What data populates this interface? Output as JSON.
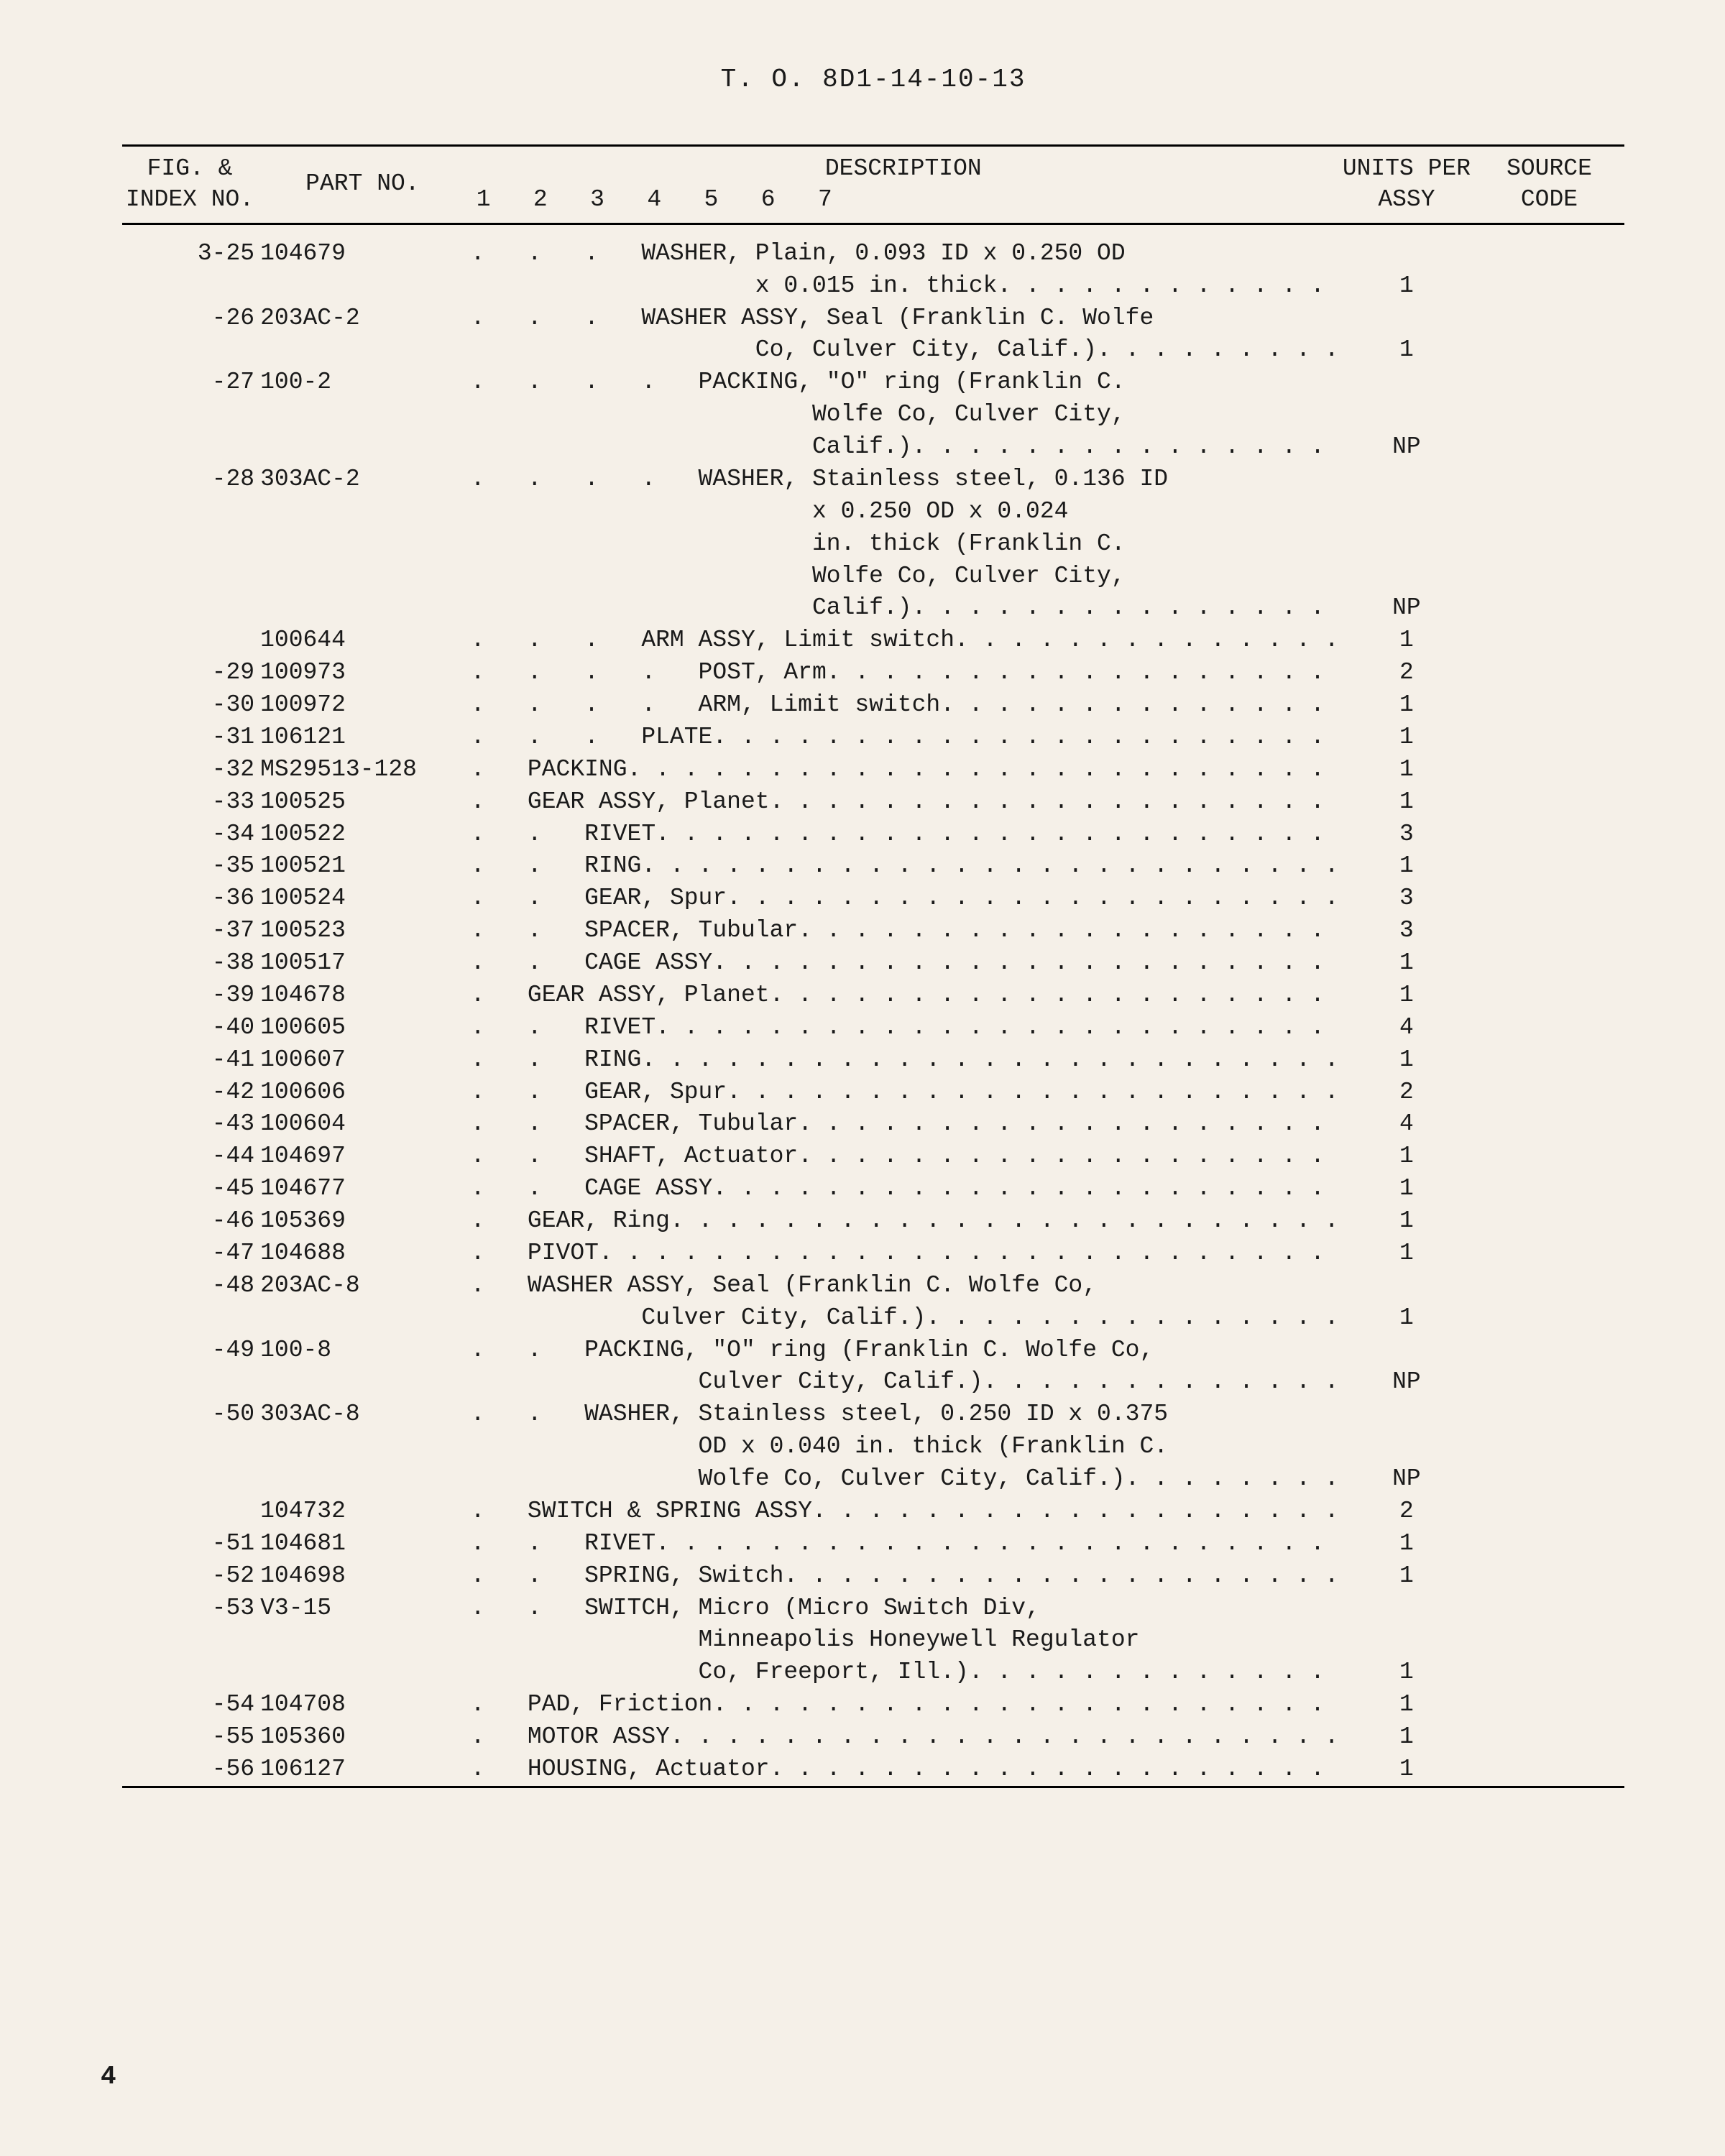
{
  "doc_title": "T. O. 8D1-14-10-13",
  "page_number": "4",
  "headers": {
    "index": "FIG. &\nINDEX\nNO.",
    "part": "PART\nNO.",
    "desc": "DESCRIPTION",
    "desc_cols": "1   2   3   4   5   6   7",
    "units": "UNITS\nPER\nASSY",
    "source": "SOURCE\nCODE"
  },
  "rows": [
    {
      "index": "3-25",
      "part": "104679",
      "indent": 3,
      "lines": [
        {
          "text": "WASHER, Plain, 0.093 ID x 0.250 OD",
          "dots": false
        },
        {
          "indent": 5,
          "text": "x 0.015 in. thick",
          "dots": true
        }
      ],
      "units": "1"
    },
    {
      "index": "-26",
      "part": "203AC-2",
      "indent": 3,
      "lines": [
        {
          "text": "WASHER ASSY, Seal (Franklin C. Wolfe",
          "dots": false
        },
        {
          "indent": 5,
          "text": "Co, Culver City, Calif.)",
          "dots": true
        }
      ],
      "units": "1"
    },
    {
      "index": "-27",
      "part": "100-2",
      "indent": 4,
      "lines": [
        {
          "text": "PACKING, \"O\" ring (Franklin C.",
          "dots": false
        },
        {
          "indent": 6,
          "text": "Wolfe Co, Culver City,",
          "dots": false
        },
        {
          "indent": 6,
          "text": "Calif.)",
          "dots": true
        }
      ],
      "units": "NP"
    },
    {
      "index": "-28",
      "part": "303AC-2",
      "indent": 4,
      "lines": [
        {
          "text": "WASHER, Stainless steel, 0.136 ID",
          "dots": false
        },
        {
          "indent": 6,
          "text": "x 0.250 OD x 0.024",
          "dots": false
        },
        {
          "indent": 6,
          "text": "in. thick (Franklin C.",
          "dots": false
        },
        {
          "indent": 6,
          "text": "Wolfe Co, Culver City,",
          "dots": false
        },
        {
          "indent": 6,
          "text": "Calif.)",
          "dots": true
        }
      ],
      "units": "NP"
    },
    {
      "index": "",
      "part": "100644",
      "indent": 3,
      "lines": [
        {
          "text": "ARM ASSY, Limit switch",
          "dots": true
        }
      ],
      "units": "1"
    },
    {
      "index": "-29",
      "part": "100973",
      "indent": 4,
      "lines": [
        {
          "text": "POST, Arm",
          "dots": true
        }
      ],
      "units": "2"
    },
    {
      "index": "-30",
      "part": "100972",
      "indent": 4,
      "lines": [
        {
          "text": "ARM, Limit switch",
          "dots": true
        }
      ],
      "units": "1"
    },
    {
      "index": "-31",
      "part": "106121",
      "indent": 3,
      "lines": [
        {
          "text": "PLATE",
          "dots": true
        }
      ],
      "units": "1"
    },
    {
      "index": "-32",
      "part": "MS29513-128",
      "indent": 1,
      "lines": [
        {
          "text": "PACKING",
          "dots": true
        }
      ],
      "units": "1"
    },
    {
      "index": "-33",
      "part": "100525",
      "indent": 1,
      "lines": [
        {
          "text": "GEAR ASSY, Planet",
          "dots": true
        }
      ],
      "units": "1"
    },
    {
      "index": "-34",
      "part": "100522",
      "indent": 2,
      "lines": [
        {
          "text": "RIVET",
          "dots": true
        }
      ],
      "units": "3"
    },
    {
      "index": "-35",
      "part": "100521",
      "indent": 2,
      "lines": [
        {
          "text": "RING",
          "dots": true
        }
      ],
      "units": "1"
    },
    {
      "index": "-36",
      "part": "100524",
      "indent": 2,
      "lines": [
        {
          "text": "GEAR, Spur",
          "dots": true
        }
      ],
      "units": "3"
    },
    {
      "index": "-37",
      "part": "100523",
      "indent": 2,
      "lines": [
        {
          "text": "SPACER, Tubular",
          "dots": true
        }
      ],
      "units": "3"
    },
    {
      "index": "-38",
      "part": "100517",
      "indent": 2,
      "lines": [
        {
          "text": "CAGE ASSY",
          "dots": true
        }
      ],
      "units": "1"
    },
    {
      "index": "-39",
      "part": "104678",
      "indent": 1,
      "lines": [
        {
          "text": "GEAR ASSY, Planet",
          "dots": true
        }
      ],
      "units": "1"
    },
    {
      "index": "-40",
      "part": "100605",
      "indent": 2,
      "lines": [
        {
          "text": "RIVET",
          "dots": true
        }
      ],
      "units": "4"
    },
    {
      "index": "-41",
      "part": "100607",
      "indent": 2,
      "lines": [
        {
          "text": "RING",
          "dots": true
        }
      ],
      "units": "1"
    },
    {
      "index": "-42",
      "part": "100606",
      "indent": 2,
      "lines": [
        {
          "text": "GEAR, Spur",
          "dots": true
        }
      ],
      "units": "2"
    },
    {
      "index": "-43",
      "part": "100604",
      "indent": 2,
      "lines": [
        {
          "text": "SPACER, Tubular",
          "dots": true
        }
      ],
      "units": "4"
    },
    {
      "index": "-44",
      "part": "104697",
      "indent": 2,
      "lines": [
        {
          "text": "SHAFT, Actuator",
          "dots": true
        }
      ],
      "units": "1"
    },
    {
      "index": "-45",
      "part": "104677",
      "indent": 2,
      "lines": [
        {
          "text": "CAGE ASSY",
          "dots": true
        }
      ],
      "units": "1"
    },
    {
      "index": "-46",
      "part": "105369",
      "indent": 1,
      "lines": [
        {
          "text": "GEAR, Ring",
          "dots": true
        }
      ],
      "units": "1"
    },
    {
      "index": "-47",
      "part": "104688",
      "indent": 1,
      "lines": [
        {
          "text": "PIVOT",
          "dots": true
        }
      ],
      "units": "1"
    },
    {
      "index": "-48",
      "part": "203AC-8",
      "indent": 1,
      "lines": [
        {
          "text": "WASHER ASSY, Seal (Franklin C. Wolfe Co,",
          "dots": false
        },
        {
          "indent": 3,
          "text": "Culver City, Calif.)",
          "dots": true
        }
      ],
      "units": "1"
    },
    {
      "index": "-49",
      "part": "100-8",
      "indent": 2,
      "lines": [
        {
          "text": "PACKING, \"O\" ring (Franklin C. Wolfe Co,",
          "dots": false
        },
        {
          "indent": 4,
          "text": "Culver City, Calif.)",
          "dots": true
        }
      ],
      "units": "NP"
    },
    {
      "index": "-50",
      "part": "303AC-8",
      "indent": 2,
      "lines": [
        {
          "text": "WASHER, Stainless steel, 0.250 ID x 0.375",
          "dots": false
        },
        {
          "indent": 4,
          "text": "OD x 0.040 in. thick (Franklin C.",
          "dots": false
        },
        {
          "indent": 4,
          "text": "Wolfe Co, Culver City, Calif.)",
          "dots": true
        }
      ],
      "units": "NP"
    },
    {
      "index": "",
      "part": "104732",
      "indent": 1,
      "lines": [
        {
          "text": "SWITCH & SPRING ASSY",
          "dots": true
        }
      ],
      "units": "2"
    },
    {
      "index": "-51",
      "part": "104681",
      "indent": 2,
      "lines": [
        {
          "text": "RIVET",
          "dots": true
        }
      ],
      "units": "1"
    },
    {
      "index": "-52",
      "part": "104698",
      "indent": 2,
      "lines": [
        {
          "text": "SPRING, Switch",
          "dots": true
        }
      ],
      "units": "1"
    },
    {
      "index": "-53",
      "part": "V3-15",
      "indent": 2,
      "lines": [
        {
          "text": "SWITCH, Micro (Micro Switch Div,",
          "dots": false
        },
        {
          "indent": 4,
          "text": "Minneapolis Honeywell Regulator",
          "dots": false
        },
        {
          "indent": 4,
          "text": "Co, Freeport, Ill.)",
          "dots": true
        }
      ],
      "units": "1"
    },
    {
      "index": "-54",
      "part": "104708",
      "indent": 1,
      "lines": [
        {
          "text": "PAD, Friction",
          "dots": true
        }
      ],
      "units": "1"
    },
    {
      "index": "-55",
      "part": "105360",
      "indent": 1,
      "lines": [
        {
          "text": "MOTOR ASSY",
          "dots": true
        }
      ],
      "units": "1"
    },
    {
      "index": "-56",
      "part": "106127",
      "indent": 1,
      "lines": [
        {
          "text": "HOUSING, Actuator",
          "dots": true
        }
      ],
      "units": "1"
    }
  ]
}
